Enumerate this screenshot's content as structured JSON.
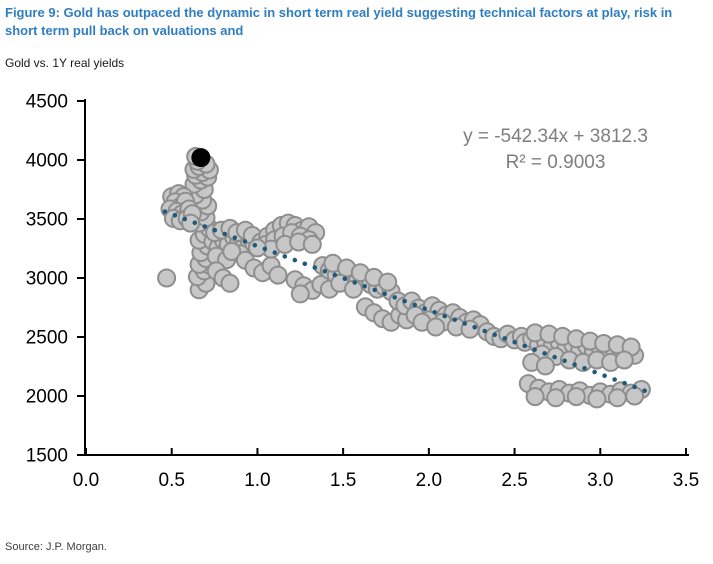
{
  "header": {
    "title": "Figure 9: Gold has outpaced the dynamic in short term real yield suggesting technical factors at play, risk in short term pull back on valuations and",
    "subtitle": "Gold vs. 1Y real yields"
  },
  "annotation": {
    "equation": "y = -542.34x + 3812.3",
    "r_squared": "R² = 0.9003"
  },
  "footer": {
    "source": "Source: J.P. Morgan."
  },
  "colors": {
    "title_blue": "#2F7EC1",
    "point_fill": "#C7C7C7",
    "point_stroke": "#8E8E8E",
    "highlight_fill": "#000000",
    "trend": "#205A78",
    "axis": "#000000",
    "annotation_text": "#7F7F7F"
  },
  "chart_data": {
    "type": "scatter",
    "title": "Gold vs. 1Y real yields",
    "xlabel": "",
    "ylabel": "",
    "xlim": [
      0,
      3.5
    ],
    "ylim": [
      1500,
      4500
    ],
    "grid": false,
    "x_ticks": [
      0,
      0.5,
      1,
      1.5,
      2,
      2.5,
      3,
      3.5
    ],
    "x_tick_labels": [
      "0.0",
      "0.5",
      "1.0",
      "1.5",
      "2.0",
      "2.5",
      "3.0",
      "3.5"
    ],
    "y_ticks": [
      1500,
      2000,
      2500,
      3000,
      3500,
      4000,
      4500
    ],
    "y_tick_labels": [
      "1500",
      "2000",
      "2500",
      "3000",
      "3500",
      "4000",
      "4500"
    ],
    "trendline": {
      "type": "linear",
      "slope": -542.34,
      "intercept": 3812.3,
      "r2": 0.9003,
      "x_start": 0.46,
      "x_end": 3.26,
      "style": "dotted",
      "dot_step": 0.0583
    },
    "highlight_point": [
      0.67,
      4020
    ],
    "points": [
      [
        0.47,
        3000
      ],
      [
        0.66,
        2900
      ],
      [
        0.7,
        2955
      ],
      [
        0.65,
        3010
      ],
      [
        0.69,
        3060
      ],
      [
        0.72,
        3110
      ],
      [
        0.66,
        3115
      ],
      [
        0.7,
        3165
      ],
      [
        0.67,
        3215
      ],
      [
        0.71,
        3270
      ],
      [
        0.66,
        3320
      ],
      [
        0.69,
        3370
      ],
      [
        0.72,
        3420
      ],
      [
        0.66,
        3465
      ],
      [
        0.7,
        3510
      ],
      [
        0.67,
        3560
      ],
      [
        0.71,
        3610
      ],
      [
        0.68,
        3660
      ],
      [
        0.64,
        3705
      ],
      [
        0.69,
        3750
      ],
      [
        0.63,
        3795
      ],
      [
        0.67,
        3830
      ],
      [
        0.71,
        3855
      ],
      [
        0.64,
        3870
      ],
      [
        0.68,
        3895
      ],
      [
        0.72,
        3915
      ],
      [
        0.63,
        3920
      ],
      [
        0.66,
        3945
      ],
      [
        0.7,
        3965
      ],
      [
        0.65,
        3990
      ],
      [
        0.64,
        4030
      ],
      [
        0.5,
        3690
      ],
      [
        0.54,
        3715
      ],
      [
        0.57,
        3690
      ],
      [
        0.52,
        3645
      ],
      [
        0.55,
        3605
      ],
      [
        0.58,
        3650
      ],
      [
        0.49,
        3585
      ],
      [
        0.53,
        3565
      ],
      [
        0.56,
        3545
      ],
      [
        0.6,
        3585
      ],
      [
        0.51,
        3505
      ],
      [
        0.55,
        3485
      ],
      [
        0.59,
        3505
      ],
      [
        0.62,
        3545
      ],
      [
        0.61,
        3465
      ],
      [
        0.74,
        3310
      ],
      [
        0.77,
        3255
      ],
      [
        0.8,
        3325
      ],
      [
        0.83,
        3285
      ],
      [
        0.86,
        3350
      ],
      [
        0.89,
        3305
      ],
      [
        0.92,
        3265
      ],
      [
        0.95,
        3325
      ],
      [
        0.98,
        3285
      ],
      [
        0.75,
        3385
      ],
      [
        0.79,
        3405
      ],
      [
        0.84,
        3420
      ],
      [
        0.88,
        3385
      ],
      [
        0.93,
        3405
      ],
      [
        0.97,
        3360
      ],
      [
        0.76,
        3185
      ],
      [
        0.82,
        3155
      ],
      [
        0.9,
        3205
      ],
      [
        0.85,
        3225
      ],
      [
        0.76,
        3060
      ],
      [
        0.8,
        3000
      ],
      [
        0.84,
        2955
      ],
      [
        0.93,
        3150
      ],
      [
        0.98,
        3085
      ],
      [
        1.03,
        3045
      ],
      [
        1.08,
        3105
      ],
      [
        1.12,
        3025
      ],
      [
        1.02,
        3305
      ],
      [
        1.06,
        3355
      ],
      [
        1.1,
        3405
      ],
      [
        1.14,
        3445
      ],
      [
        1.18,
        3465
      ],
      [
        1.22,
        3445
      ],
      [
        1.26,
        3405
      ],
      [
        1.3,
        3435
      ],
      [
        1.34,
        3385
      ],
      [
        1.05,
        3285
      ],
      [
        1.1,
        3325
      ],
      [
        1.15,
        3355
      ],
      [
        1.2,
        3385
      ],
      [
        1.25,
        3355
      ],
      [
        1.3,
        3325
      ],
      [
        1.08,
        3245
      ],
      [
        1.16,
        3285
      ],
      [
        1.24,
        3305
      ],
      [
        1.32,
        3285
      ],
      [
        1.0,
        3255
      ],
      [
        1.22,
        2985
      ],
      [
        1.27,
        2935
      ],
      [
        1.32,
        2895
      ],
      [
        1.37,
        2945
      ],
      [
        1.42,
        2905
      ],
      [
        1.25,
        2865
      ],
      [
        1.38,
        3105
      ],
      [
        1.42,
        3065
      ],
      [
        1.46,
        3025
      ],
      [
        1.5,
        3055
      ],
      [
        1.54,
        3005
      ],
      [
        1.58,
        2965
      ],
      [
        1.62,
        2985
      ],
      [
        1.66,
        2945
      ],
      [
        1.7,
        2905
      ],
      [
        1.74,
        2925
      ],
      [
        1.78,
        2885
      ],
      [
        1.44,
        3125
      ],
      [
        1.52,
        3085
      ],
      [
        1.6,
        3045
      ],
      [
        1.68,
        3005
      ],
      [
        1.76,
        2965
      ],
      [
        1.48,
        2955
      ],
      [
        1.56,
        2905
      ],
      [
        1.63,
        2755
      ],
      [
        1.68,
        2705
      ],
      [
        1.73,
        2655
      ],
      [
        1.78,
        2625
      ],
      [
        1.83,
        2685
      ],
      [
        1.87,
        2645
      ],
      [
        1.82,
        2805
      ],
      [
        1.86,
        2765
      ],
      [
        1.9,
        2805
      ],
      [
        1.94,
        2745
      ],
      [
        1.98,
        2705
      ],
      [
        2.02,
        2765
      ],
      [
        2.06,
        2725
      ],
      [
        2.1,
        2685
      ],
      [
        2.14,
        2705
      ],
      [
        2.18,
        2665
      ],
      [
        2.22,
        2625
      ],
      [
        2.26,
        2645
      ],
      [
        2.3,
        2605
      ],
      [
        1.92,
        2685
      ],
      [
        2.0,
        2645
      ],
      [
        2.08,
        2625
      ],
      [
        2.16,
        2585
      ],
      [
        2.24,
        2565
      ],
      [
        1.96,
        2625
      ],
      [
        2.04,
        2585
      ],
      [
        2.34,
        2545
      ],
      [
        2.38,
        2505
      ],
      [
        2.42,
        2485
      ],
      [
        2.46,
        2525
      ],
      [
        2.5,
        2475
      ],
      [
        2.54,
        2505
      ],
      [
        2.56,
        2455
      ],
      [
        2.6,
        2485
      ],
      [
        2.64,
        2435
      ],
      [
        2.68,
        2465
      ],
      [
        2.72,
        2425
      ],
      [
        2.76,
        2455
      ],
      [
        2.8,
        2405
      ],
      [
        2.84,
        2435
      ],
      [
        2.88,
        2385
      ],
      [
        2.92,
        2425
      ],
      [
        2.96,
        2385
      ],
      [
        3.0,
        2405
      ],
      [
        3.04,
        2365
      ],
      [
        3.08,
        2395
      ],
      [
        3.12,
        2355
      ],
      [
        3.16,
        2385
      ],
      [
        3.2,
        2345
      ],
      [
        2.62,
        2535
      ],
      [
        2.7,
        2525
      ],
      [
        2.78,
        2505
      ],
      [
        2.86,
        2485
      ],
      [
        2.94,
        2465
      ],
      [
        3.02,
        2445
      ],
      [
        3.1,
        2435
      ],
      [
        3.18,
        2415
      ],
      [
        2.66,
        2355
      ],
      [
        2.74,
        2335
      ],
      [
        2.82,
        2305
      ],
      [
        2.9,
        2285
      ],
      [
        2.98,
        2305
      ],
      [
        3.06,
        2285
      ],
      [
        3.14,
        2305
      ],
      [
        2.6,
        2285
      ],
      [
        2.68,
        2255
      ],
      [
        2.58,
        2105
      ],
      [
        2.64,
        2065
      ],
      [
        2.7,
        2035
      ],
      [
        2.76,
        2055
      ],
      [
        2.82,
        2025
      ],
      [
        2.88,
        2045
      ],
      [
        2.94,
        2005
      ],
      [
        3.0,
        2035
      ],
      [
        3.06,
        2015
      ],
      [
        3.12,
        2045
      ],
      [
        3.18,
        2025
      ],
      [
        3.24,
        2055
      ],
      [
        2.62,
        1995
      ],
      [
        2.74,
        1985
      ],
      [
        2.86,
        1995
      ],
      [
        2.98,
        1975
      ],
      [
        3.1,
        1985
      ],
      [
        3.2,
        2000
      ]
    ]
  }
}
